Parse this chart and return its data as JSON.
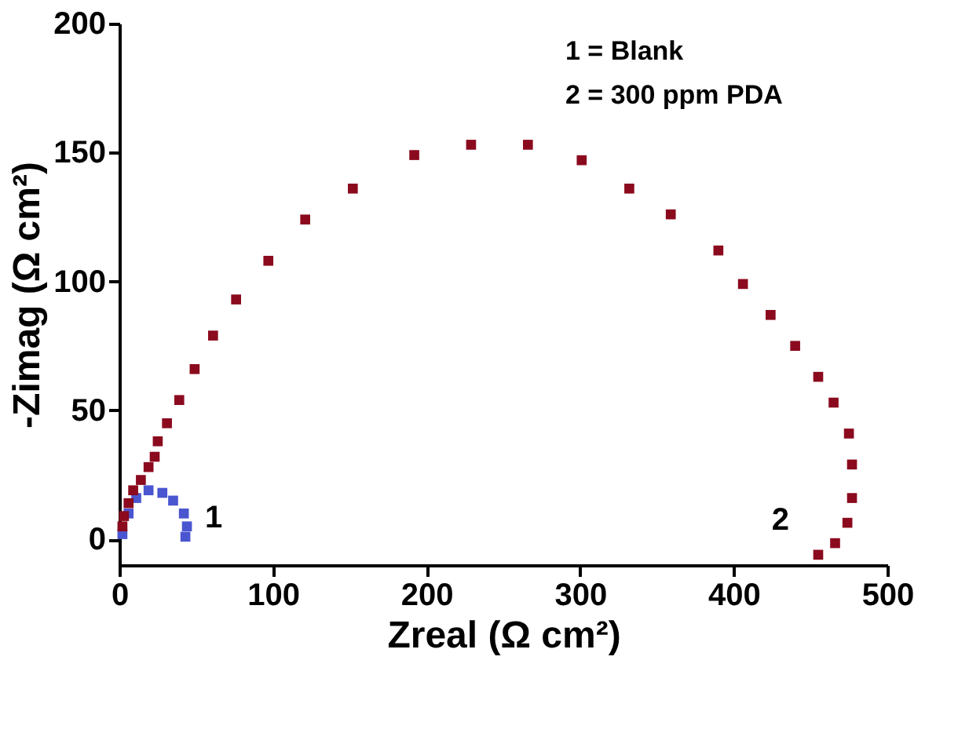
{
  "chart_data": {
    "type": "scatter",
    "xlabel": "Zreal (Ω cm²)",
    "ylabel": "-Zimag (Ω cm²)",
    "xlim": [
      0,
      500
    ],
    "ylim": [
      -10,
      200
    ],
    "xticks": [
      0,
      100,
      200,
      300,
      400,
      500
    ],
    "yticks": [
      0,
      50,
      100,
      150,
      200
    ],
    "grid": false,
    "marker": "square",
    "annotations": [
      "1 = Blank",
      "2 = 300 ppm PDA",
      "1",
      "2"
    ],
    "series": [
      {
        "color": "#4a55d0",
        "x": [
          2,
          6,
          11,
          19,
          28,
          35,
          42,
          44,
          43
        ],
        "values": [
          2,
          10,
          16,
          19,
          18,
          15,
          10,
          5,
          1
        ]
      },
      {
        "color": "#8b0a1e",
        "x": [
          2,
          3,
          6,
          9,
          14,
          19,
          23,
          25,
          31,
          39,
          49,
          61,
          76,
          97,
          121,
          152,
          192,
          229,
          266,
          301,
          332,
          359,
          390,
          406,
          424,
          440,
          455,
          465,
          475,
          477,
          477,
          474,
          466,
          455
        ],
        "values": [
          5,
          9,
          14,
          19,
          23,
          28,
          32,
          38,
          45,
          54,
          66,
          79,
          93,
          108,
          124,
          136,
          149,
          153,
          153,
          147,
          136,
          126,
          112,
          99,
          87,
          75,
          63,
          53,
          41,
          29,
          16,
          6.4,
          -1.5,
          -6
        ]
      }
    ]
  }
}
